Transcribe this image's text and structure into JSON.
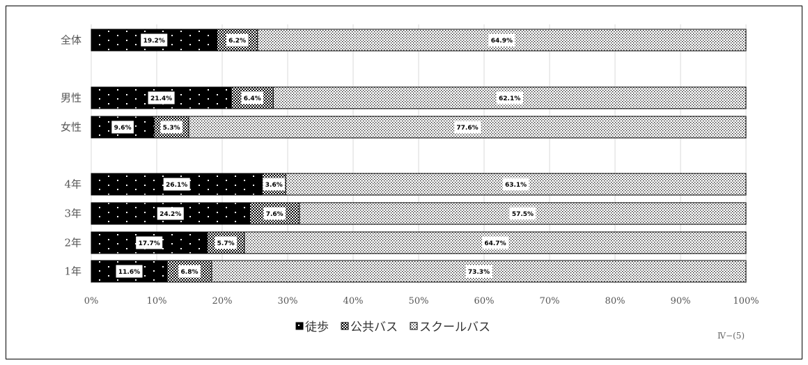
{
  "chart_data": {
    "type": "bar",
    "orientation": "horizontal",
    "stacked": true,
    "percent": true,
    "categories": [
      "全体",
      "男性",
      "女性",
      "4年",
      "3年",
      "2年",
      "1年"
    ],
    "series": [
      {
        "name": "徒歩",
        "values": [
          19.2,
          21.4,
          9.6,
          26.1,
          24.2,
          17.7,
          11.6
        ],
        "pattern": "white-dots-on-black",
        "labels": [
          "19.2%",
          "21.4%",
          "9.6%",
          "26.1%",
          "24.2%",
          "17.7%",
          "11.6%"
        ]
      },
      {
        "name": "公共バス",
        "values": [
          6.2,
          6.4,
          5.3,
          3.6,
          7.6,
          5.7,
          6.8
        ],
        "pattern": "checkered",
        "labels": [
          "6.2%",
          "6.4%",
          "5.3%",
          "3.6%",
          "7.6%",
          "5.7%",
          "6.8%"
        ]
      },
      {
        "name": "スクールバス",
        "values": [
          64.9,
          62.1,
          77.6,
          63.1,
          57.5,
          64.7,
          73.3
        ],
        "pattern": "fine-dots",
        "labels": [
          "64.9%",
          "62.1%",
          "77.6%",
          "63.1%",
          "57.5%",
          "64.7%",
          "73.3%"
        ]
      }
    ],
    "xlim": [
      0,
      100
    ],
    "x_ticks": [
      "0%",
      "10%",
      "20%",
      "30%",
      "40%",
      "50%",
      "60%",
      "70%",
      "80%",
      "90%",
      "100%"
    ],
    "grid": true,
    "legend_position": "bottom",
    "colors": {
      "series_fill": "#000000",
      "bar_border": "#000000",
      "gridline": "#d9d9d9"
    }
  },
  "figure_id": "Ⅳ−(5)"
}
